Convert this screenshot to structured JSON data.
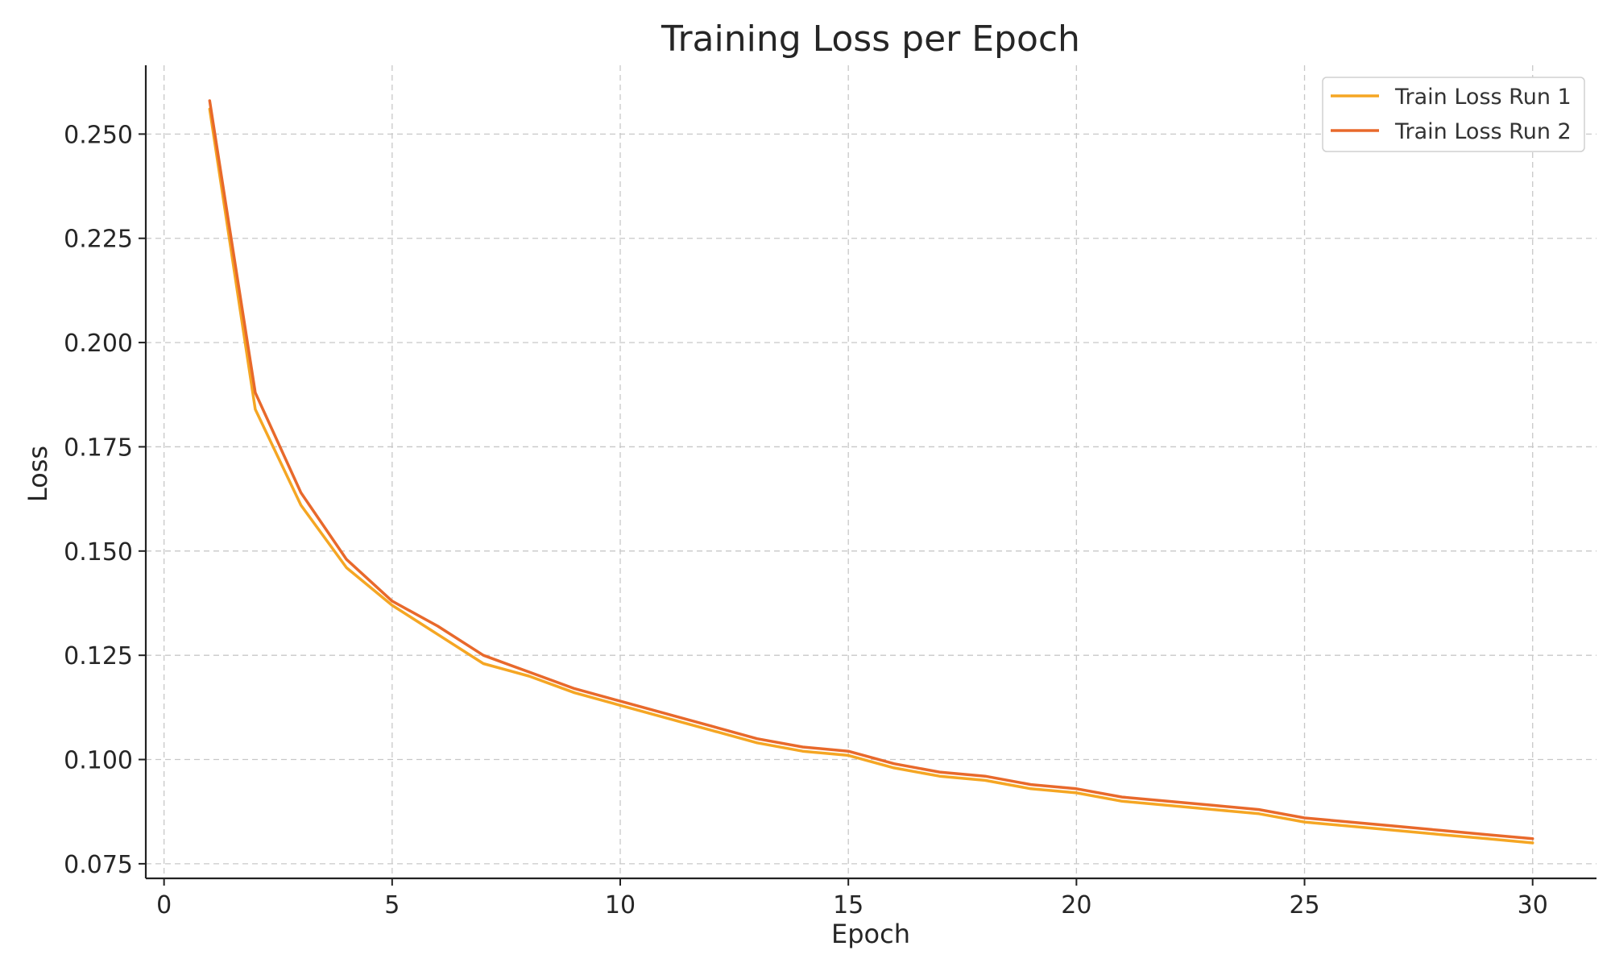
{
  "chart_data": {
    "type": "line",
    "title": "Training Loss per Epoch",
    "xlabel": "Epoch",
    "ylabel": "Loss",
    "xlim": [
      -0.4,
      31.4
    ],
    "ylim": [
      0.0715,
      0.2665
    ],
    "xticks": [
      0,
      5,
      10,
      15,
      20,
      25,
      30
    ],
    "xtick_labels": [
      "0",
      "5",
      "10",
      "15",
      "20",
      "25",
      "30"
    ],
    "yticks": [
      0.075,
      0.1,
      0.125,
      0.15,
      0.175,
      0.2,
      0.225,
      0.25
    ],
    "ytick_labels": [
      "0.075",
      "0.100",
      "0.125",
      "0.150",
      "0.175",
      "0.200",
      "0.225",
      "0.250"
    ],
    "grid": true,
    "legend_position": "top-right",
    "x": [
      1,
      2,
      3,
      4,
      5,
      6,
      7,
      8,
      9,
      10,
      11,
      12,
      13,
      14,
      15,
      16,
      17,
      18,
      19,
      20,
      21,
      22,
      23,
      24,
      25,
      26,
      27,
      28,
      29,
      30
    ],
    "series": [
      {
        "name": "Train Loss Run 1",
        "color": "#F5A623",
        "values": [
          0.256,
          0.184,
          0.161,
          0.146,
          0.137,
          0.13,
          0.123,
          0.12,
          0.116,
          0.113,
          0.11,
          0.107,
          0.104,
          0.102,
          0.101,
          0.098,
          0.096,
          0.095,
          0.093,
          0.092,
          0.09,
          0.089,
          0.088,
          0.087,
          0.085,
          0.084,
          0.083,
          0.082,
          0.081,
          0.08
        ]
      },
      {
        "name": "Train Loss Run 2",
        "color": "#E8692B",
        "values": [
          0.258,
          0.188,
          0.164,
          0.148,
          0.138,
          0.132,
          0.125,
          0.121,
          0.117,
          0.114,
          0.111,
          0.108,
          0.105,
          0.103,
          0.102,
          0.099,
          0.097,
          0.096,
          0.094,
          0.093,
          0.091,
          0.09,
          0.089,
          0.088,
          0.086,
          0.085,
          0.084,
          0.083,
          0.082,
          0.081
        ]
      }
    ]
  }
}
